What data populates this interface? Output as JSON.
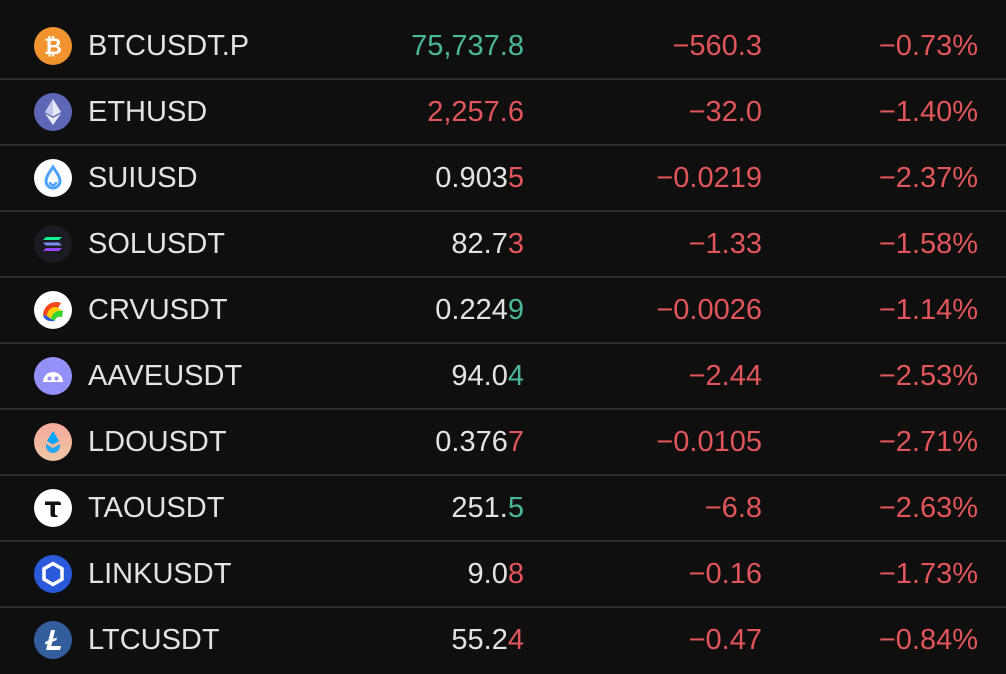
{
  "colors": {
    "background": "#0f0f0f",
    "divider": "#2c2c2c",
    "text": "#e3e3e3",
    "up": "#4ab79a",
    "down": "#e0565a"
  },
  "rows": [
    {
      "symbol": "BTCUSDT.P",
      "icon": "bitcoin-icon",
      "price_main": "75,737.8",
      "price_tick": "",
      "price_color": "up",
      "change": "−560.3",
      "pct": "−0.73%"
    },
    {
      "symbol": "ETHUSD",
      "icon": "ethereum-icon",
      "price_main": "2,257.6",
      "price_tick": "",
      "price_color": "down",
      "change": "−32.0",
      "pct": "−1.40%"
    },
    {
      "symbol": "SUIUSD",
      "icon": "sui-icon",
      "price_main": "0.903",
      "price_tick": "5",
      "tick_color": "down",
      "change": "−0.0219",
      "pct": "−2.37%"
    },
    {
      "symbol": "SOLUSDT",
      "icon": "solana-icon",
      "price_main": "82.7",
      "price_tick": "3",
      "tick_color": "down",
      "change": "−1.33",
      "pct": "−1.58%"
    },
    {
      "symbol": "CRVUSDT",
      "icon": "curve-icon",
      "price_main": "0.224",
      "price_tick": "9",
      "tick_color": "up",
      "change": "−0.0026",
      "pct": "−1.14%"
    },
    {
      "symbol": "AAVEUSDT",
      "icon": "aave-icon",
      "price_main": "94.0",
      "price_tick": "4",
      "tick_color": "up",
      "change": "−2.44",
      "pct": "−2.53%"
    },
    {
      "symbol": "LDOUSDT",
      "icon": "lido-icon",
      "price_main": "0.376",
      "price_tick": "7",
      "tick_color": "down",
      "change": "−0.0105",
      "pct": "−2.71%"
    },
    {
      "symbol": "TAOUSDT",
      "icon": "bittensor-icon",
      "price_main": "251.",
      "price_tick": "5",
      "tick_color": "up",
      "change": "−6.8",
      "pct": "−2.63%"
    },
    {
      "symbol": "LINKUSDT",
      "icon": "chainlink-icon",
      "price_main": "9.0",
      "price_tick": "8",
      "tick_color": "down",
      "change": "−0.16",
      "pct": "−1.73%"
    },
    {
      "symbol": "LTCUSDT",
      "icon": "litecoin-icon",
      "price_main": "55.2",
      "price_tick": "4",
      "tick_color": "down",
      "change": "−0.47",
      "pct": "−0.84%"
    }
  ]
}
